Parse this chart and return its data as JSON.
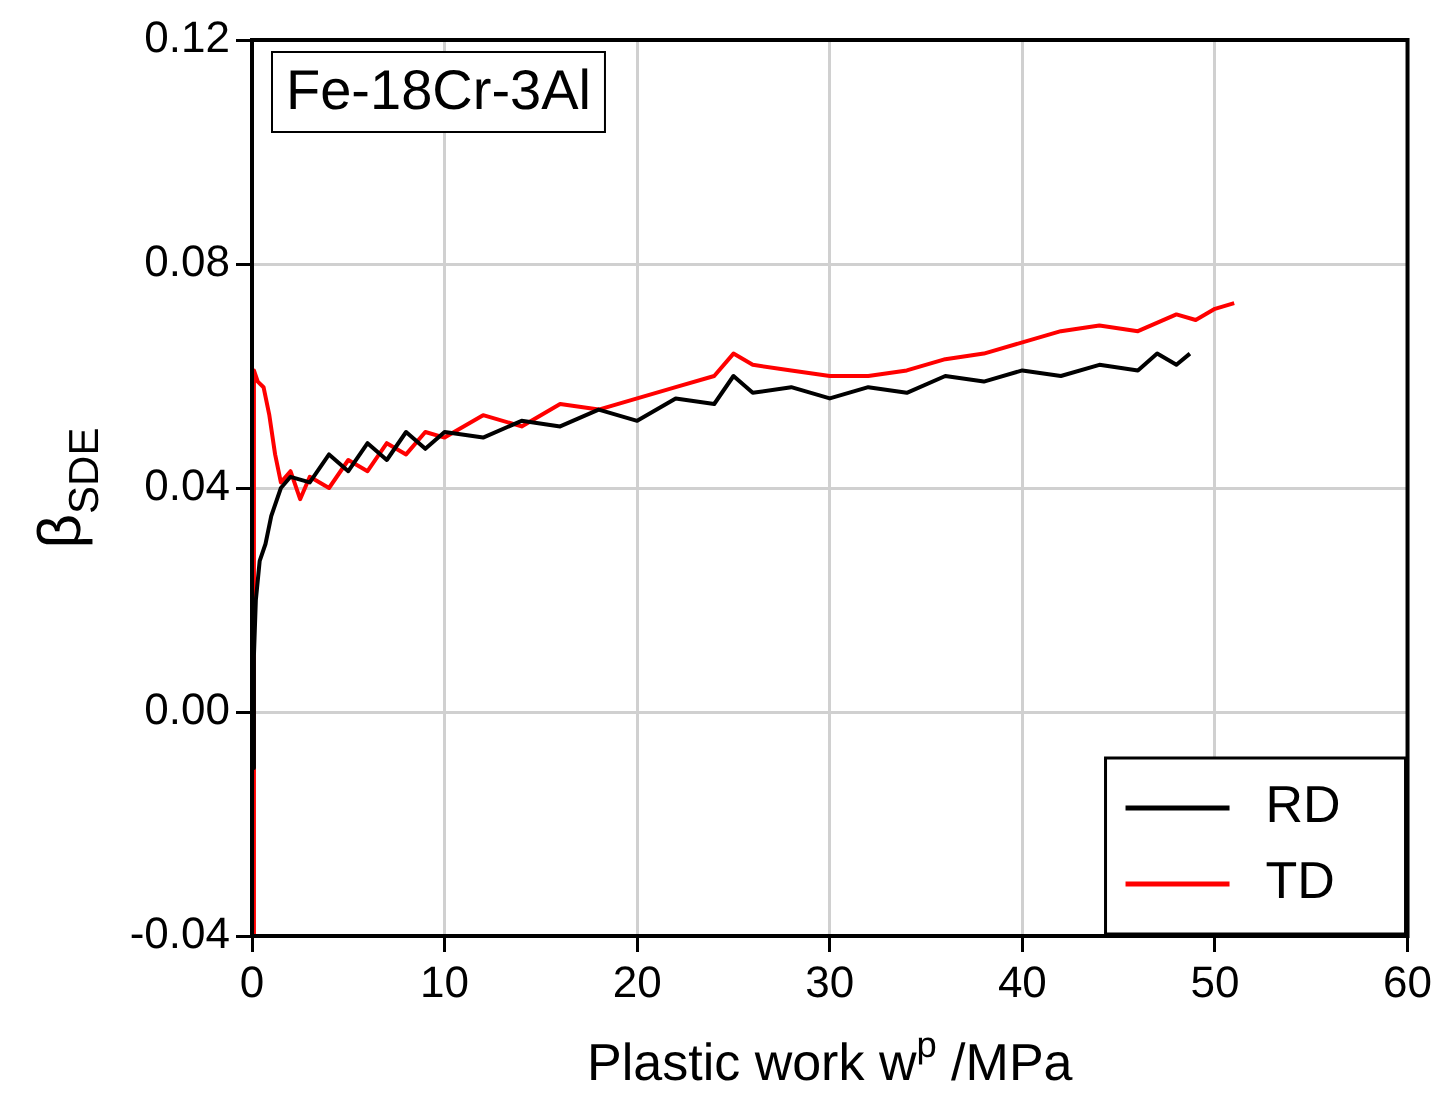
{
  "chart_data": {
    "type": "line",
    "title": "Fe-18Cr-3Al",
    "xlabel": "Plastic work w$^{p}$ /MPa",
    "ylabel": "β$_{SDE}$",
    "xlim": [
      0,
      60
    ],
    "xticks": [
      0,
      10,
      20,
      30,
      40,
      50,
      60
    ],
    "ylim": [
      -0.04,
      0.12
    ],
    "yticks": [
      -0.04,
      {
        "value": 0,
        "label": "0.00"
      },
      0.04,
      0.08,
      0.12
    ],
    "grid": true,
    "legend": "bottom right",
    "marker": "none",
    "line_style": "solid",
    "series": [
      {
        "name": "RD",
        "color": "#000000",
        "x": [
          0,
          0.1,
          0.2,
          0.4,
          0.7,
          1,
          1.5,
          2,
          3,
          4,
          5,
          6,
          7,
          8,
          9,
          10,
          12,
          14,
          16,
          18,
          20,
          22,
          24,
          25,
          26,
          28,
          30,
          32,
          34,
          36,
          38,
          40,
          42,
          44,
          46,
          47,
          48,
          48.7
        ],
        "values": [
          -0.01,
          0.01,
          0.02,
          0.027,
          0.03,
          0.035,
          0.04,
          0.042,
          0.041,
          0.046,
          0.043,
          0.048,
          0.045,
          0.05,
          0.047,
          0.05,
          0.049,
          0.052,
          0.051,
          0.054,
          0.052,
          0.056,
          0.055,
          0.06,
          0.057,
          0.058,
          0.056,
          0.058,
          0.057,
          0.06,
          0.059,
          0.061,
          0.06,
          0.062,
          0.061,
          0.064,
          0.062,
          0.064
        ]
      },
      {
        "name": "TD",
        "color": "#ff0000",
        "x": [
          0,
          0.1,
          0.3,
          0.6,
          0.9,
          1.2,
          1.5,
          2,
          2.5,
          3,
          4,
          5,
          6,
          7,
          8,
          9,
          10,
          12,
          14,
          16,
          18,
          20,
          22,
          24,
          25,
          26,
          28,
          30,
          32,
          34,
          36,
          38,
          40,
          42,
          44,
          46,
          48,
          49,
          50,
          51
        ],
        "values": [
          -0.04,
          0.061,
          0.059,
          0.058,
          0.053,
          0.046,
          0.041,
          0.043,
          0.038,
          0.042,
          0.04,
          0.045,
          0.043,
          0.048,
          0.046,
          0.05,
          0.049,
          0.053,
          0.051,
          0.055,
          0.054,
          0.056,
          0.058,
          0.06,
          0.064,
          0.062,
          0.061,
          0.06,
          0.06,
          0.061,
          0.063,
          0.064,
          0.066,
          0.068,
          0.069,
          0.068,
          0.071,
          0.07,
          0.072,
          0.073
        ]
      }
    ]
  }
}
